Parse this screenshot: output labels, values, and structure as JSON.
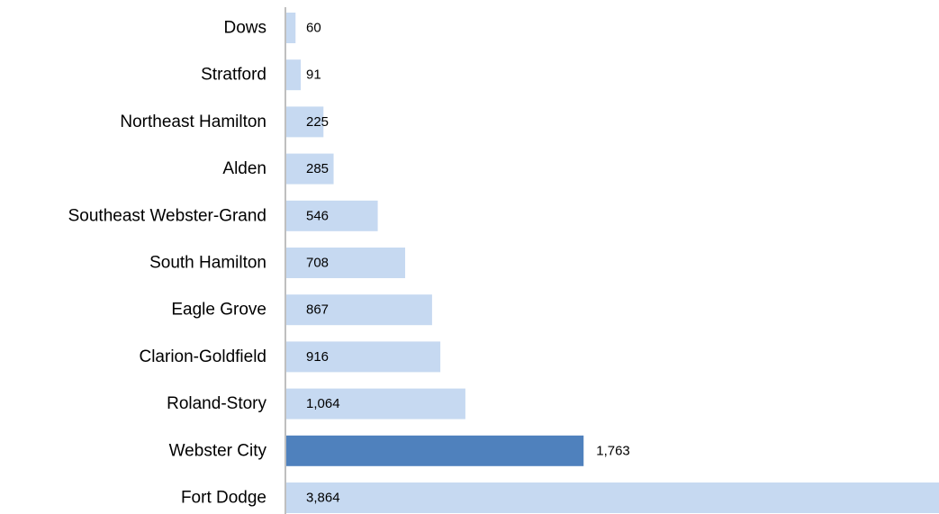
{
  "chart_data": {
    "type": "bar",
    "orientation": "horizontal",
    "categories": [
      "Dows",
      "Stratford",
      "Northeast Hamilton",
      "Alden",
      "Southeast Webster-Grand",
      "South Hamilton",
      "Eagle Grove",
      "Clarion-Goldfield",
      "Roland-Story",
      "Webster City",
      "Fort Dodge"
    ],
    "values": [
      60,
      91,
      225,
      285,
      546,
      708,
      867,
      916,
      1064,
      1763,
      3864
    ],
    "value_labels": [
      "60",
      "91",
      "225",
      "285",
      "546",
      "708",
      "867",
      "916",
      "1,064",
      "1,763",
      "3,864"
    ],
    "highlight_index": 9,
    "colors": {
      "bar": "#c6d9f1",
      "highlight": "#4f81bd",
      "axis": "#7f7f7f",
      "text": "#000000"
    },
    "xlim": [
      0,
      3864
    ],
    "grid": false,
    "legend": "none",
    "title": "",
    "xlabel": "",
    "ylabel": ""
  }
}
